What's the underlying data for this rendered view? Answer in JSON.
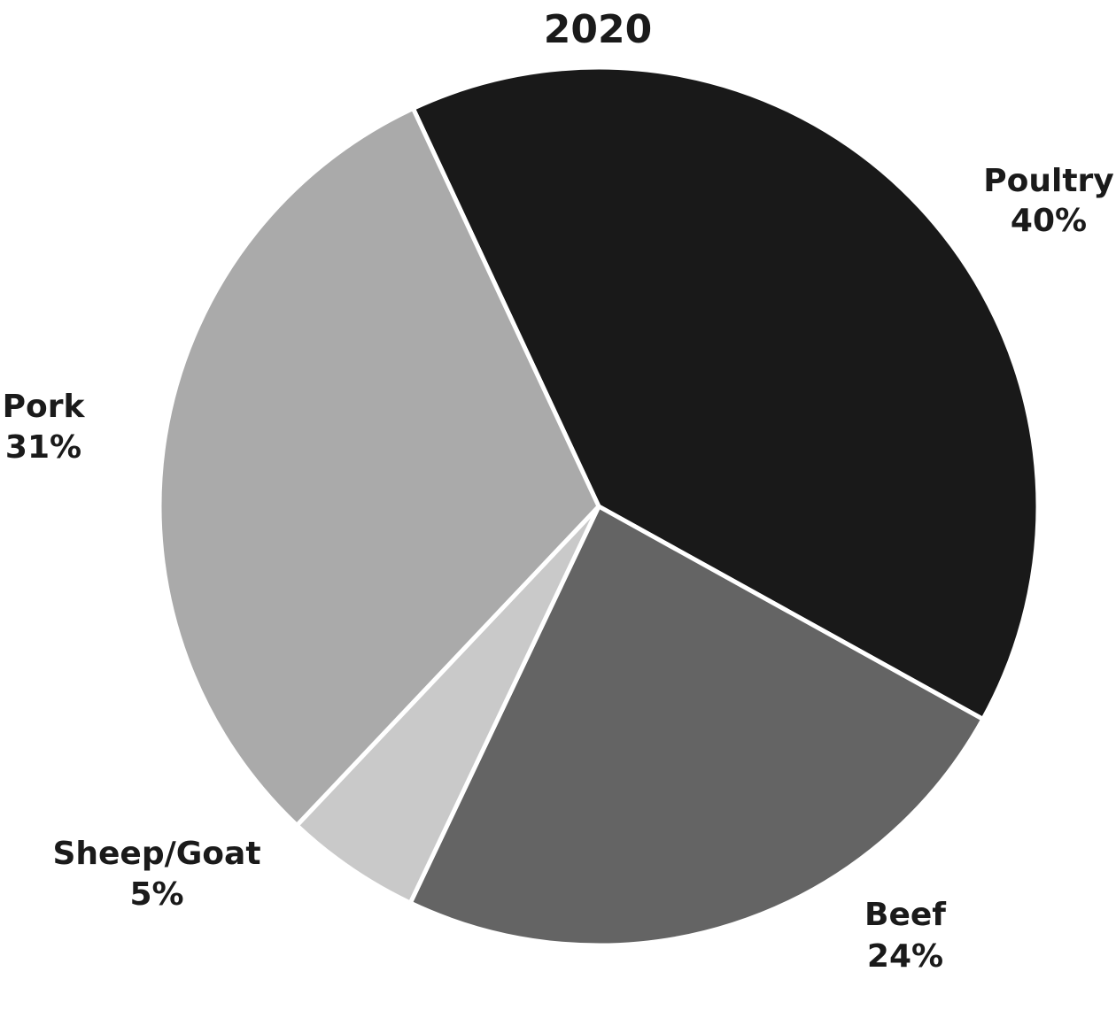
{
  "chart_data": {
    "type": "pie",
    "title": "2020",
    "slices": [
      {
        "label": "Poultry",
        "value": 40,
        "value_label": "40%",
        "color": "#191919"
      },
      {
        "label": "Beef",
        "value": 24,
        "value_label": "24%",
        "color": "#646464"
      },
      {
        "label": "Sheep/Goat",
        "value": 5,
        "value_label": "5%",
        "color": "#c9c9c9"
      },
      {
        "label": "Pork",
        "value": 31,
        "value_label": "31%",
        "color": "#aaaaaa"
      }
    ]
  }
}
